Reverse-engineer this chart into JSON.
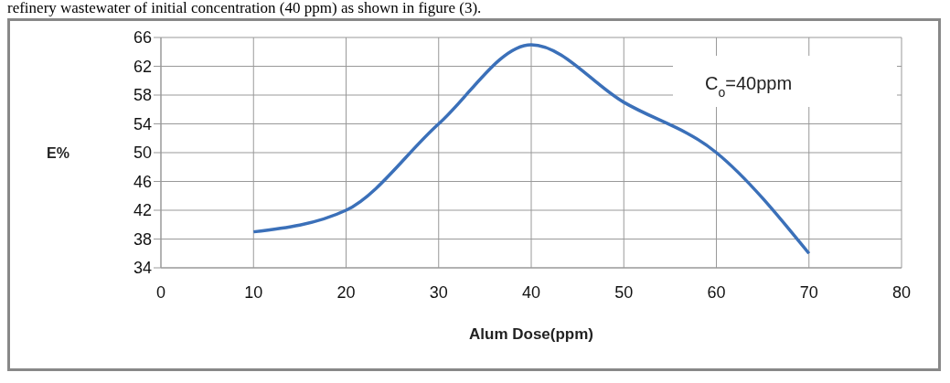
{
  "chart_data": {
    "type": "line",
    "xlabel": "Alum Dose(ppm)",
    "ylabel": "E%",
    "annotations": [
      "refinery wastewater of initial concentration (40 ppm) as shown in figure (3).",
      "C$_{o}$=40ppm"
    ],
    "x": [
      10,
      20,
      30,
      40,
      50,
      60,
      70
    ],
    "series": [
      {
        "color": "#3b70b9",
        "values": [
          39,
          42,
          54,
          65,
          57,
          50,
          36
        ]
      }
    ],
    "xlim": [
      0,
      80
    ],
    "xticks": [
      0,
      10,
      20,
      30,
      40,
      50,
      60,
      70,
      80
    ],
    "ylim": [
      34,
      66
    ],
    "yticks": [
      34,
      38,
      42,
      46,
      50,
      54,
      58,
      62,
      66
    ],
    "grid": true,
    "legend": false,
    "marker": "none",
    "line_style": "solid"
  }
}
